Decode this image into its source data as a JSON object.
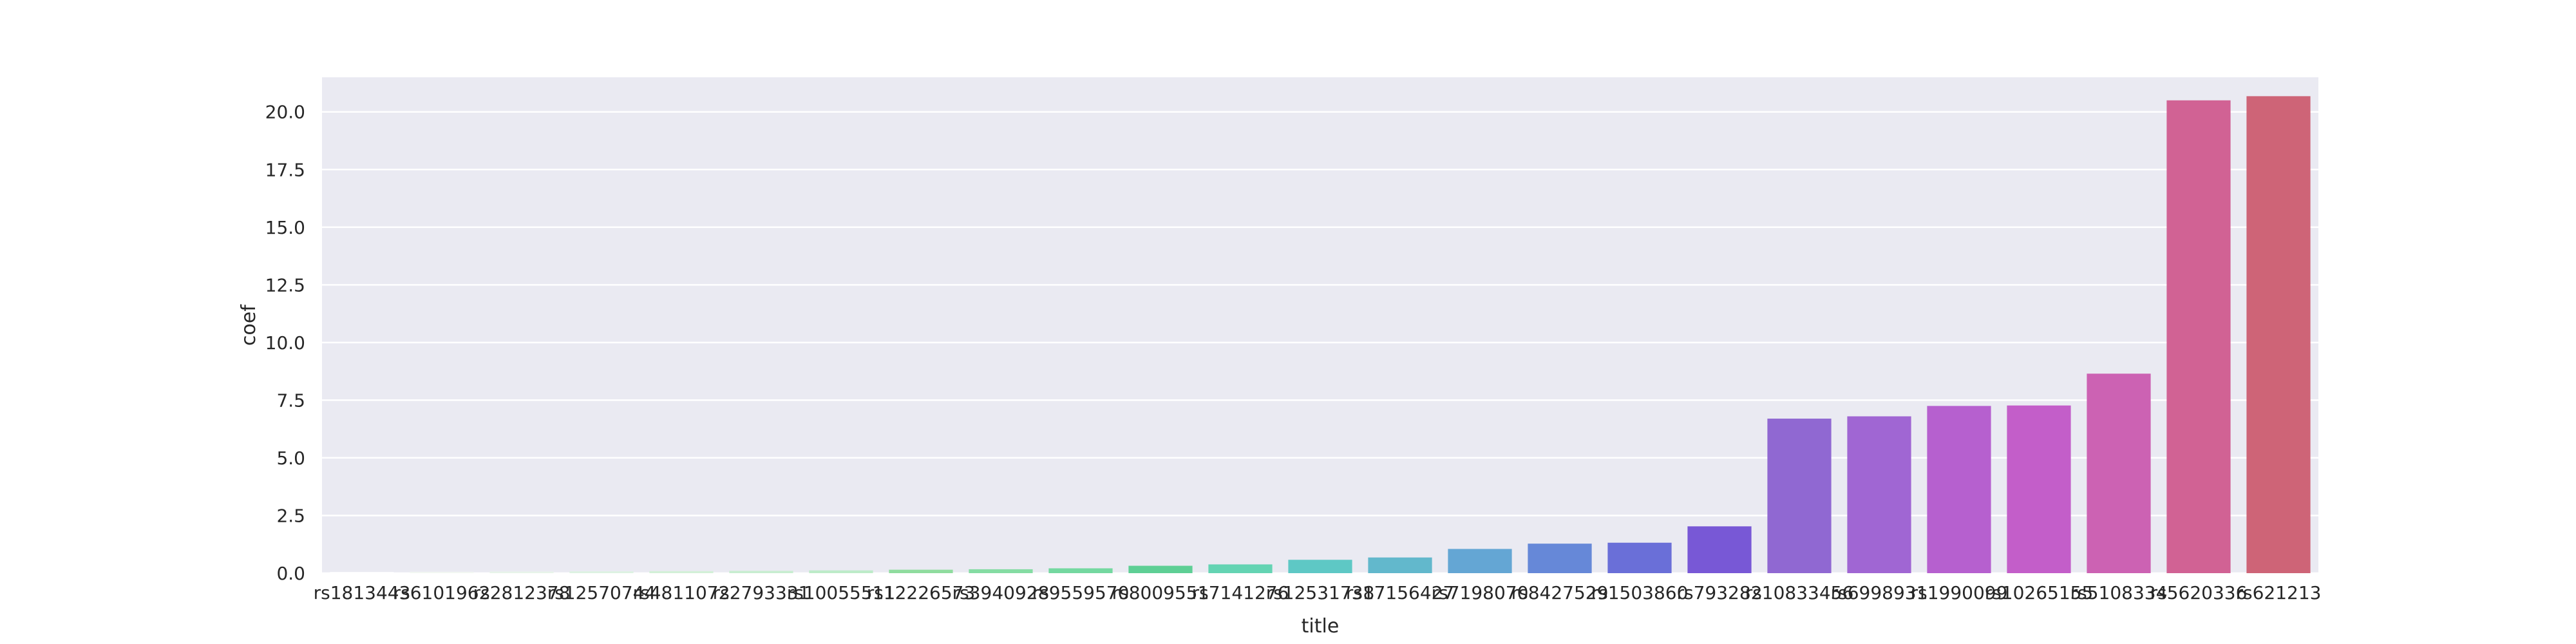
{
  "chart_data": {
    "type": "bar",
    "title": "",
    "xlabel": "title",
    "ylabel": "coef",
    "ylim": [
      0,
      21.5
    ],
    "yticks": [
      0.0,
      2.5,
      5.0,
      7.5,
      10.0,
      12.5,
      15.0,
      17.5,
      20.0
    ],
    "ytick_labels": [
      "0.0",
      "2.5",
      "5.0",
      "7.5",
      "10.0",
      "12.5",
      "15.0",
      "17.5",
      "20.0"
    ],
    "grid": true,
    "categories": [
      "rs1813443",
      "rs6101962",
      "rs2812378",
      "rs12570744",
      "rs4811072",
      "rs2793331",
      "rs10055511",
      "rs12226573",
      "rs3940928",
      "rs9559570",
      "rs8009551",
      "rs7141276",
      "rs12531738",
      "rs17156427",
      "rs7198070",
      "rs8427529",
      "rs1503860",
      "rs793282",
      "rs10833456",
      "rs6998931",
      "rs1990099",
      "rs10265155",
      "rs5108334",
      "rs5620336",
      "rs621213"
    ],
    "values": [
      0.05,
      0.06,
      0.07,
      0.08,
      0.09,
      0.1,
      0.12,
      0.15,
      0.17,
      0.21,
      0.32,
      0.38,
      0.58,
      0.68,
      1.05,
      1.28,
      1.32,
      2.03,
      6.7,
      6.8,
      7.25,
      7.27,
      8.65,
      20.5,
      20.68
    ],
    "colors": [
      "#ffffff",
      "#f2f7f2",
      "#e8f4ea",
      "#ddf2e2",
      "#d3f0d8",
      "#c8edd0",
      "#bdebc8",
      "#8fdc9e",
      "#85dca3",
      "#74d8a0",
      "#5ecf95",
      "#64d4b3",
      "#5ec8c5",
      "#62b8cc",
      "#64a6d4",
      "#6688d8",
      "#6a6fd8",
      "#7858d6",
      "#9068d2",
      "#a066d3",
      "#b660cf",
      "#c35ec9",
      "#cc62b3",
      "#d16294",
      "#ce6477"
    ]
  }
}
